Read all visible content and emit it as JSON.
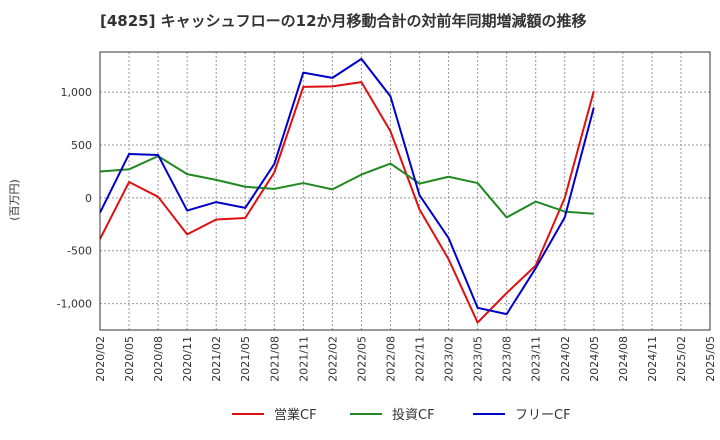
{
  "chart_data": {
    "type": "line",
    "title": "[4825]  キャッシュフローの12か月移動合計の対前年同期増減額の推移",
    "ylabel": "(百万円)",
    "xlabel": "",
    "ylim": [
      -1250,
      1380
    ],
    "yticks": [
      -1000,
      -500,
      0,
      500,
      1000
    ],
    "ytick_labels": [
      "-1,000",
      "-500",
      "0",
      "500",
      "1,000"
    ],
    "x": [
      "2020/02",
      "2020/05",
      "2020/08",
      "2020/11",
      "2021/02",
      "2021/05",
      "2021/08",
      "2021/11",
      "2022/02",
      "2022/05",
      "2022/08",
      "2022/11",
      "2023/02",
      "2023/05",
      "2023/08",
      "2023/11",
      "2024/02",
      "2024/05",
      "2024/08",
      "2024/11",
      "2025/02",
      "2025/05"
    ],
    "grid": true,
    "legend_position": "bottom",
    "series": [
      {
        "name": "営業CF",
        "color": "#dd1111",
        "values": [
          -390,
          150,
          10,
          -345,
          -205,
          -190,
          240,
          1050,
          1055,
          1095,
          630,
          -110,
          -580,
          -1180,
          -900,
          -640,
          0,
          1010,
          null,
          null,
          null,
          null
        ]
      },
      {
        "name": "投資CF",
        "color": "#228822",
        "values": [
          250,
          270,
          395,
          225,
          170,
          105,
          85,
          140,
          80,
          220,
          325,
          135,
          200,
          140,
          -185,
          -35,
          -130,
          -150,
          null,
          null,
          null,
          null
        ]
      },
      {
        "name": "フリーCF",
        "color": "#0000cc",
        "values": [
          -140,
          415,
          405,
          -120,
          -40,
          -95,
          320,
          1185,
          1135,
          1315,
          960,
          25,
          -380,
          -1040,
          -1100,
          -665,
          -185,
          855,
          null,
          null,
          null,
          null
        ]
      }
    ]
  }
}
